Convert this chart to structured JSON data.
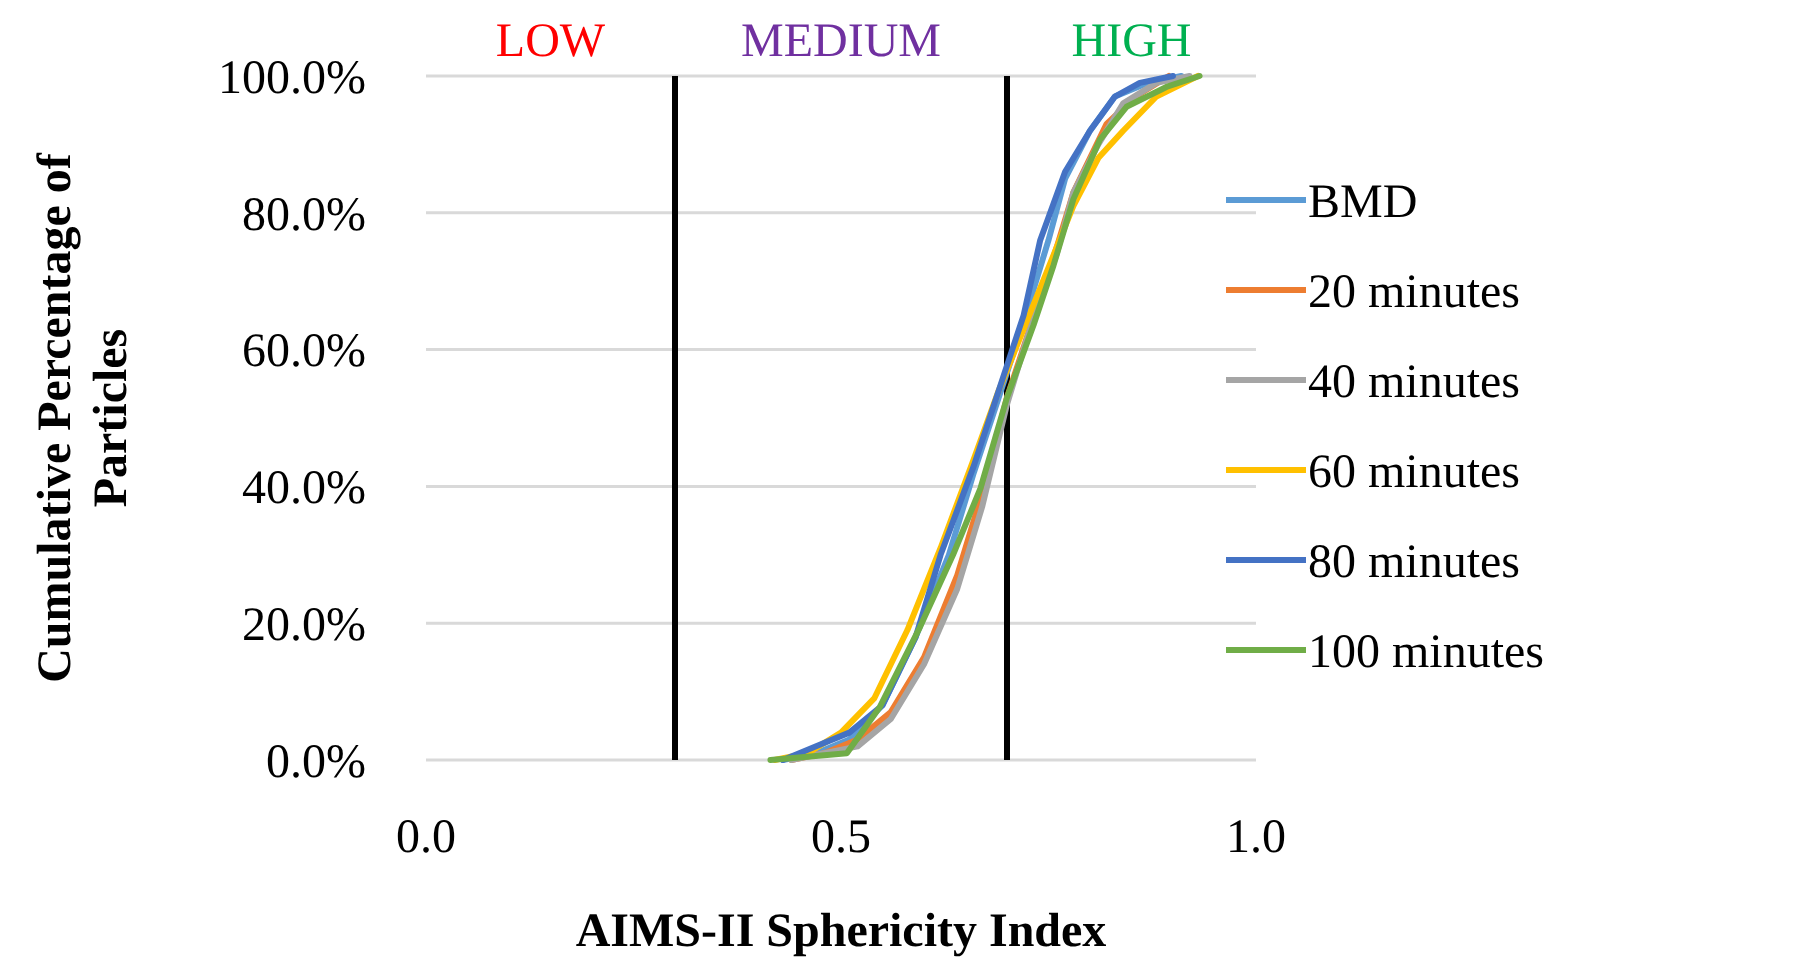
{
  "chart_data": {
    "type": "line",
    "xlabel": "AIMS-II Sphericity Index",
    "ylabel": "Cumulative Percentage of Particles",
    "xlim": [
      0,
      1
    ],
    "xticks": [
      {
        "value": 0,
        "label": "0.0"
      },
      {
        "value": 0.5,
        "label": "0.5"
      },
      {
        "value": 1,
        "label": "1.0"
      }
    ],
    "ylim": [
      0,
      100
    ],
    "yticks": [
      {
        "value": 0,
        "label": "0.0%"
      },
      {
        "value": 20,
        "label": "20.0%"
      },
      {
        "value": 40,
        "label": "40.0%"
      },
      {
        "value": 60,
        "label": "60.0%"
      },
      {
        "value": 80,
        "label": "80.0%"
      },
      {
        "value": 100,
        "label": "100.0%"
      }
    ],
    "grid": "y",
    "legend": "right",
    "marker": "none",
    "line_style": "solid",
    "ref_lines": [
      {
        "axis": "x",
        "value": 0.3,
        "color": "#000000"
      },
      {
        "axis": "x",
        "value": 0.7,
        "color": "#000000"
      }
    ],
    "annotations": [
      "LOW",
      "MEDIUM",
      "HIGH"
    ],
    "series": [
      {
        "name": "BMD",
        "color": "#5b9bd5",
        "x": [
          0.43,
          0.47,
          0.51,
          0.55,
          0.59,
          0.63,
          0.66,
          0.69,
          0.72,
          0.75,
          0.77,
          0.8,
          0.83,
          0.87,
          0.91
        ],
        "values": [
          0,
          1,
          3,
          8,
          18,
          30,
          42,
          53,
          64,
          76,
          85,
          92,
          97,
          99,
          100
        ]
      },
      {
        "name": "20 minutes",
        "color": "#ed7d31",
        "x": [
          0.44,
          0.48,
          0.52,
          0.56,
          0.6,
          0.64,
          0.67,
          0.7,
          0.73,
          0.76,
          0.78,
          0.8,
          0.82,
          0.855,
          0.895
        ],
        "values": [
          0,
          1,
          3,
          7,
          15,
          27,
          39,
          53,
          64,
          75,
          83,
          88,
          93,
          97,
          100
        ]
      },
      {
        "name": "40 minutes",
        "color": "#a5a5a5",
        "x": [
          0.44,
          0.48,
          0.52,
          0.56,
          0.6,
          0.64,
          0.67,
          0.7,
          0.73,
          0.76,
          0.78,
          0.81,
          0.84,
          0.88,
          0.92
        ],
        "values": [
          0,
          1,
          2,
          6,
          14,
          25,
          37,
          52,
          64,
          74,
          83,
          90,
          96,
          99,
          100
        ]
      },
      {
        "name": "60 minutes",
        "color": "#ffc000",
        "x": [
          0.42,
          0.46,
          0.5,
          0.54,
          0.58,
          0.62,
          0.66,
          0.69,
          0.72,
          0.75,
          0.78,
          0.81,
          0.84,
          0.88,
          0.93
        ],
        "values": [
          0,
          1,
          4,
          9,
          19,
          31,
          44,
          54,
          63,
          72,
          81,
          88,
          92,
          97,
          100
        ]
      },
      {
        "name": "80 minutes",
        "color": "#4472c4",
        "x": [
          0.43,
          0.47,
          0.51,
          0.55,
          0.59,
          0.62,
          0.66,
          0.69,
          0.72,
          0.74,
          0.77,
          0.8,
          0.83,
          0.86,
          0.9
        ],
        "values": [
          0,
          2,
          4,
          8,
          18,
          30,
          43,
          54,
          65,
          76,
          86,
          92,
          97,
          99,
          100
        ]
      },
      {
        "name": "100 minutes",
        "color": "#70ad47",
        "x": [
          0.415,
          0.507,
          0.547,
          0.595,
          0.635,
          0.668,
          0.7,
          0.732,
          0.756,
          0.78,
          0.812,
          0.844,
          0.892,
          0.932
        ],
        "values": [
          0,
          1,
          7.8,
          19.4,
          30,
          39.7,
          53,
          63.6,
          72.3,
          82,
          90.7,
          95.5,
          98.4,
          100
        ]
      }
    ]
  }
}
